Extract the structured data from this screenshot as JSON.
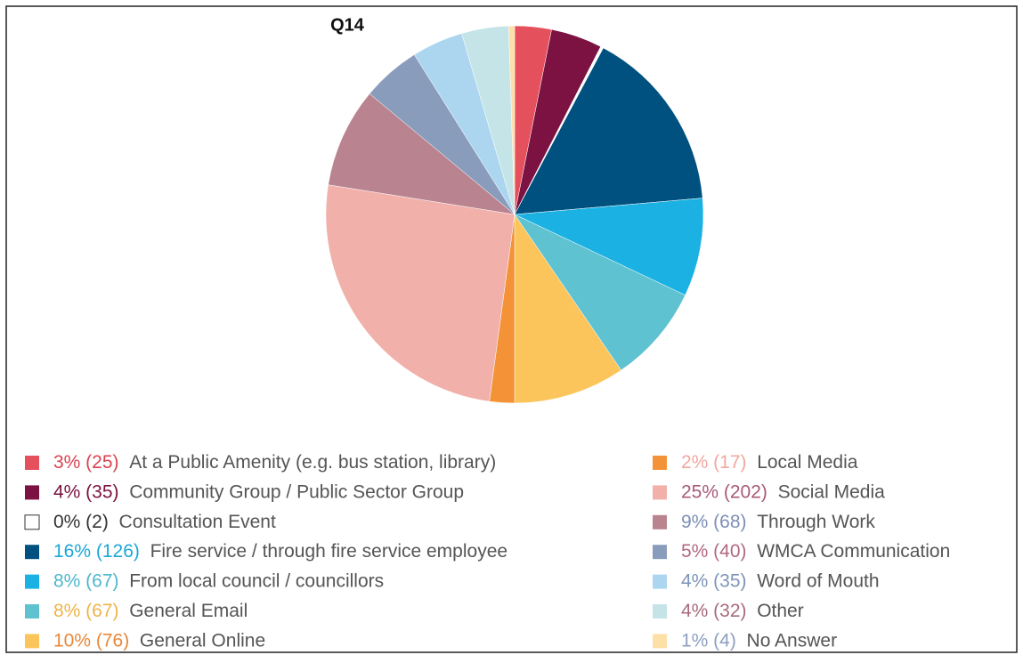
{
  "chart_data": {
    "type": "pie",
    "title": "Q14",
    "categories": [
      "At a Public Amenity (e.g. bus station, library)",
      "Community Group / Public Sector Group",
      "Consultation Event",
      "Fire service / through fire service employee",
      "From local council / councillors",
      "General Email",
      "General Online",
      "Local Media",
      "Social Media",
      "Through Work",
      "WMCA Communication",
      "Word of Mouth",
      "Other",
      "No Answer"
    ],
    "values": [
      25,
      35,
      2,
      126,
      67,
      67,
      76,
      17,
      202,
      68,
      40,
      35,
      32,
      4
    ],
    "value_labels": [
      "3% (25)",
      "4% (35)",
      "0% (2)",
      "16% (126)",
      "8% (67)",
      "8% (67)",
      "10% (76)",
      "2% (17)",
      "25% (202)",
      "9% (68)",
      "5% (40)",
      "4% (35)",
      "4% (32)",
      "1% (4)"
    ],
    "colors": [
      "#e5505d",
      "#7b1241",
      "#ffffff",
      "#00517f",
      "#1bb2e3",
      "#5ec2d0",
      "#fbc55c",
      "#f39236",
      "#f2b0aa",
      "#b9838f",
      "#8a9cbc",
      "#acd6ef",
      "#c5e4e8",
      "#fde0a8"
    ],
    "label_colors": [
      "#d9434f",
      "#7b1241",
      "#333333",
      "#1aa7d8",
      "#4fb7cc",
      "#efb34a",
      "#e8883a",
      "#f0a8a0",
      "#a85a78",
      "#7d8fb5",
      "#b06a80",
      "#7d95b8",
      "#a86b7c",
      "#8da0c0"
    ]
  }
}
